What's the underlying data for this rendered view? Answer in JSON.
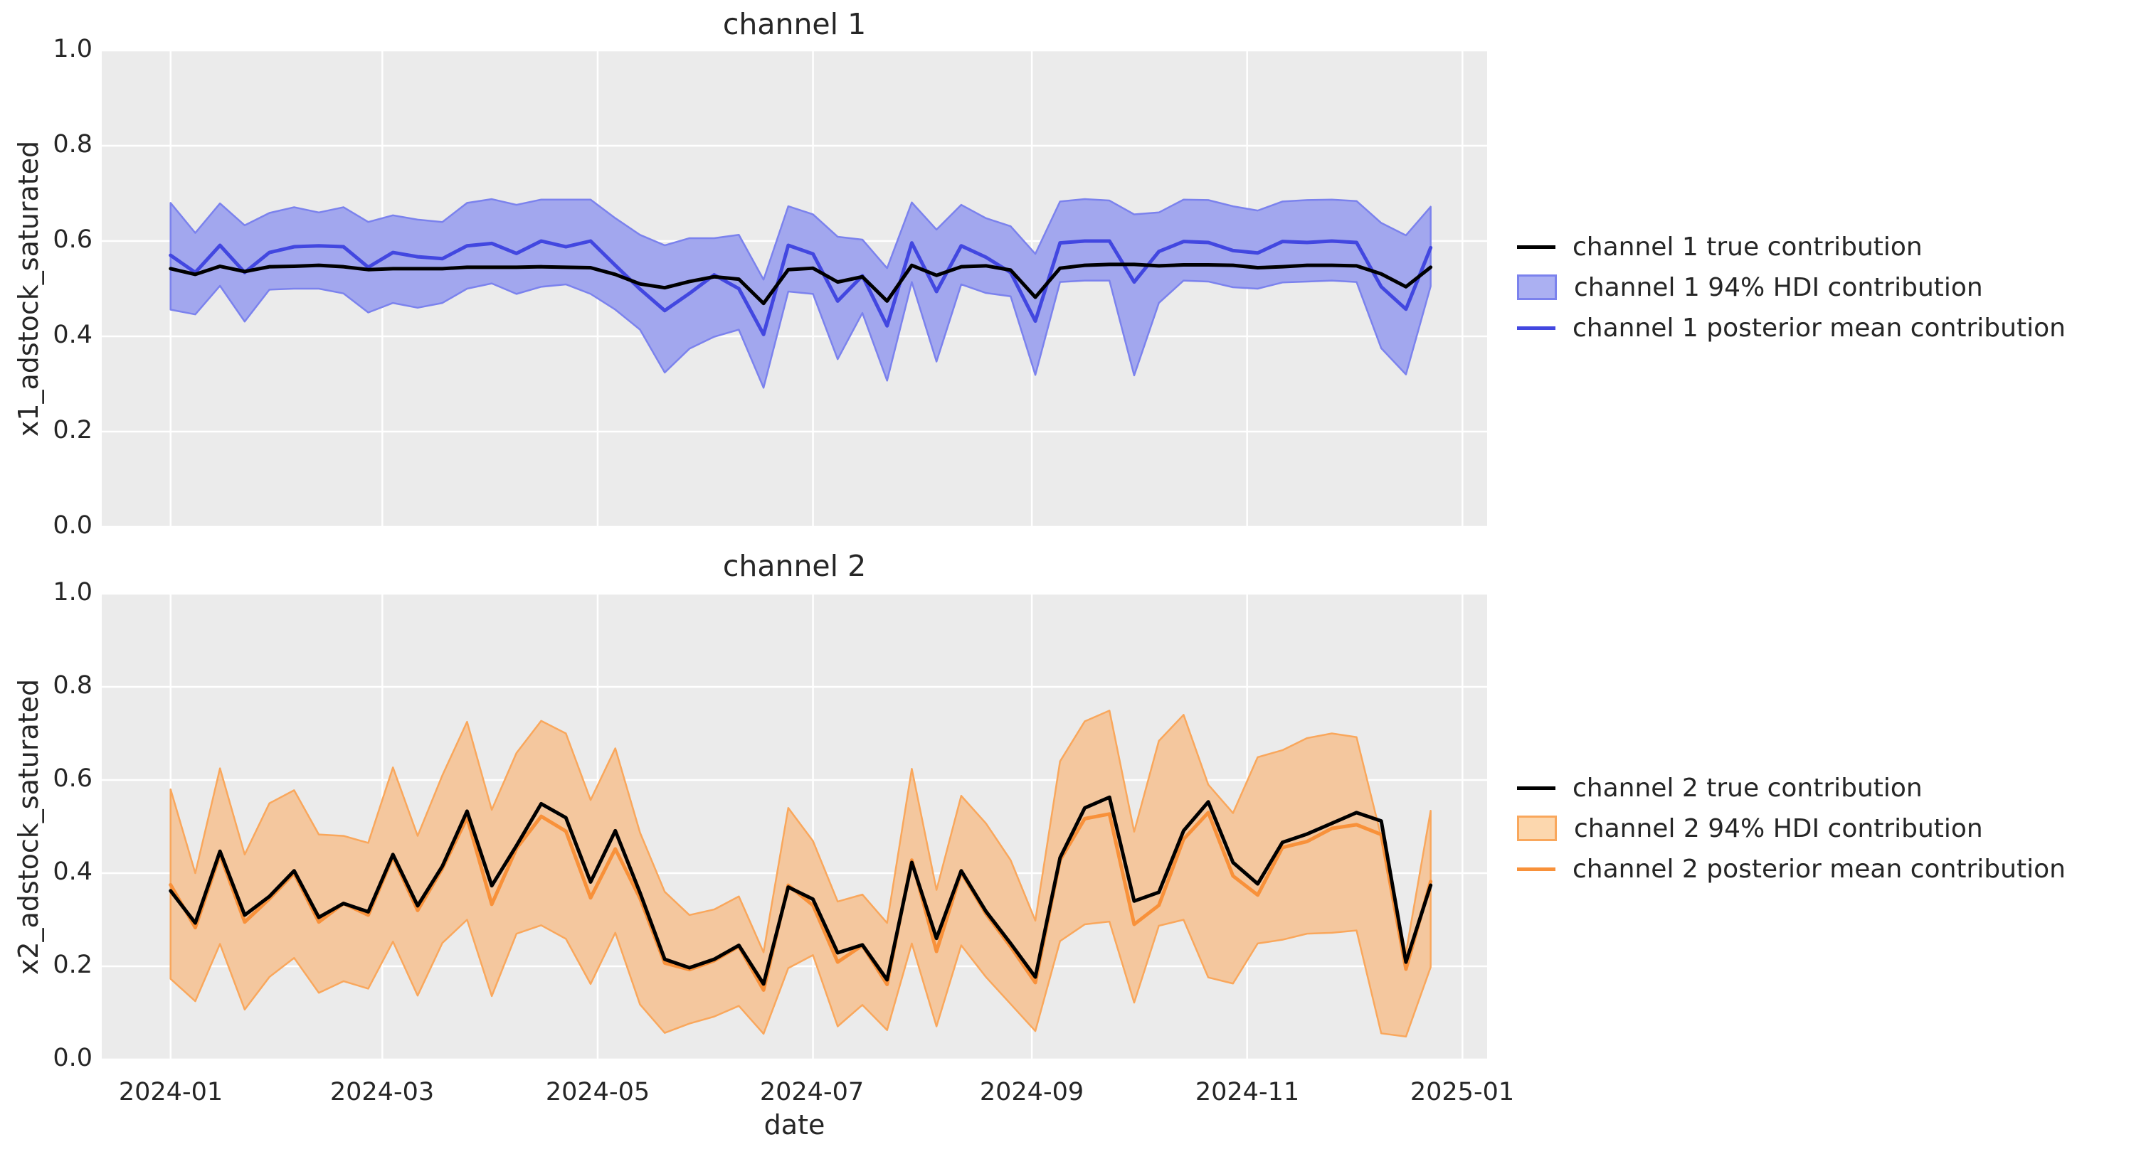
{
  "style": {
    "background": "#ffffff",
    "plot_bg": "#ebebeb",
    "grid_color": "#ffffff",
    "text_color": "#262626",
    "true_line_color": "#000000",
    "ch1_line_color": "#4247e0",
    "ch2_line_color": "#f8913a"
  },
  "chart_data": {
    "type": "line+band",
    "x": {
      "label": "date",
      "tick_labels": [
        "2024-01",
        "2024-03",
        "2024-05",
        "2024-07",
        "2024-09",
        "2024-11",
        "2025-01"
      ],
      "tick_days": [
        0,
        60,
        121,
        182,
        244,
        305,
        366
      ],
      "start_day": 0,
      "step_days": 7,
      "n_points": 52,
      "xlim_days": [
        -19.5,
        373.0
      ],
      "grid": true
    },
    "subplots": [
      {
        "title": "channel 1",
        "ylabel": "x1_adstock_saturated",
        "ylim": [
          0,
          1
        ],
        "ytick_values": [
          0,
          0.2,
          0.4,
          0.6,
          0.8,
          1.0
        ],
        "ytick_labels": [
          "0.0",
          "0.2",
          "0.4",
          "0.6",
          "0.8",
          "1.0"
        ],
        "colors": {
          "true_line": "#000000",
          "mean_line": "#4247e0",
          "band_fill": "#a2a7ee",
          "band_edge": "#7b82ed",
          "legend_patch_fill": "#abb0f2"
        },
        "legend": [
          "channel 1 true contribution",
          "channel 1 94% HDI contribution",
          "channel 1 posterior mean contribution"
        ],
        "true_values": [
          0.542,
          0.53,
          0.547,
          0.536,
          0.546,
          0.547,
          0.549,
          0.546,
          0.54,
          0.542,
          0.542,
          0.542,
          0.545,
          0.545,
          0.545,
          0.546,
          0.545,
          0.544,
          0.53,
          0.51,
          0.502,
          0.515,
          0.525,
          0.52,
          0.469,
          0.54,
          0.543,
          0.514,
          0.525,
          0.474,
          0.549,
          0.528,
          0.546,
          0.548,
          0.539,
          0.482,
          0.543,
          0.549,
          0.551,
          0.551,
          0.548,
          0.55,
          0.55,
          0.549,
          0.544,
          0.546,
          0.549,
          0.549,
          0.548,
          0.531,
          0.504,
          0.545
        ],
        "posterior_mean": [
          0.57,
          0.534,
          0.591,
          0.534,
          0.576,
          0.588,
          0.59,
          0.588,
          0.545,
          0.576,
          0.567,
          0.563,
          0.59,
          0.595,
          0.574,
          0.6,
          0.588,
          0.6,
          0.549,
          0.499,
          0.454,
          0.49,
          0.529,
          0.5,
          0.404,
          0.591,
          0.573,
          0.474,
          0.527,
          0.422,
          0.596,
          0.494,
          0.59,
          0.566,
          0.534,
          0.432,
          0.596,
          0.6,
          0.6,
          0.514,
          0.578,
          0.599,
          0.597,
          0.58,
          0.575,
          0.599,
          0.597,
          0.6,
          0.597,
          0.504,
          0.457,
          0.586
        ],
        "hdi_upper": [
          0.68,
          0.617,
          0.679,
          0.633,
          0.659,
          0.671,
          0.66,
          0.671,
          0.64,
          0.654,
          0.645,
          0.64,
          0.68,
          0.688,
          0.676,
          0.687,
          0.687,
          0.687,
          0.648,
          0.613,
          0.591,
          0.606,
          0.606,
          0.613,
          0.519,
          0.673,
          0.656,
          0.609,
          0.603,
          0.543,
          0.681,
          0.624,
          0.676,
          0.648,
          0.631,
          0.573,
          0.683,
          0.688,
          0.685,
          0.656,
          0.66,
          0.687,
          0.686,
          0.673,
          0.664,
          0.683,
          0.686,
          0.687,
          0.684,
          0.638,
          0.612,
          0.672
        ],
        "hdi_lower": [
          0.456,
          0.446,
          0.506,
          0.431,
          0.498,
          0.5,
          0.5,
          0.49,
          0.45,
          0.47,
          0.46,
          0.47,
          0.5,
          0.511,
          0.489,
          0.504,
          0.509,
          0.489,
          0.456,
          0.414,
          0.324,
          0.374,
          0.399,
          0.414,
          0.292,
          0.494,
          0.489,
          0.352,
          0.449,
          0.307,
          0.514,
          0.347,
          0.509,
          0.491,
          0.484,
          0.319,
          0.514,
          0.517,
          0.517,
          0.318,
          0.47,
          0.517,
          0.515,
          0.503,
          0.5,
          0.513,
          0.515,
          0.517,
          0.514,
          0.375,
          0.32,
          0.505
        ]
      },
      {
        "title": "channel 2",
        "ylabel": "x2_adstock_saturated",
        "ylim": [
          0,
          1
        ],
        "ytick_values": [
          0,
          0.2,
          0.4,
          0.6,
          0.8,
          1.0
        ],
        "ytick_labels": [
          "0.0",
          "0.2",
          "0.4",
          "0.6",
          "0.8",
          "1.0"
        ],
        "colors": {
          "true_line": "#000000",
          "mean_line": "#f8913a",
          "band_fill": "#f4c79e",
          "band_edge": "#f9a75c",
          "legend_patch_fill": "#fcd7ae"
        },
        "legend": [
          "channel 2 true contribution",
          "channel 2 94% HDI contribution",
          "channel 2 posterior mean contribution"
        ],
        "true_values": [
          0.362,
          0.293,
          0.447,
          0.31,
          0.35,
          0.405,
          0.305,
          0.335,
          0.317,
          0.44,
          0.33,
          0.415,
          0.533,
          0.373,
          0.459,
          0.549,
          0.519,
          0.381,
          0.491,
          0.358,
          0.215,
          0.197,
          0.215,
          0.245,
          0.162,
          0.37,
          0.344,
          0.229,
          0.246,
          0.171,
          0.423,
          0.26,
          0.405,
          0.318,
          0.249,
          0.177,
          0.433,
          0.54,
          0.563,
          0.34,
          0.359,
          0.491,
          0.553,
          0.423,
          0.377,
          0.466,
          0.484,
          0.507,
          0.53,
          0.512,
          0.209,
          0.374
        ],
        "posterior_mean": [
          0.375,
          0.283,
          0.44,
          0.295,
          0.345,
          0.4,
          0.295,
          0.335,
          0.31,
          0.435,
          0.32,
          0.41,
          0.519,
          0.333,
          0.453,
          0.522,
          0.49,
          0.347,
          0.452,
          0.346,
          0.207,
          0.193,
          0.212,
          0.243,
          0.149,
          0.374,
          0.331,
          0.209,
          0.245,
          0.161,
          0.428,
          0.232,
          0.402,
          0.313,
          0.242,
          0.165,
          0.428,
          0.517,
          0.527,
          0.29,
          0.331,
          0.473,
          0.53,
          0.394,
          0.353,
          0.455,
          0.468,
          0.496,
          0.504,
          0.483,
          0.194,
          0.382
        ],
        "hdi_upper": [
          0.58,
          0.4,
          0.625,
          0.44,
          0.55,
          0.578,
          0.483,
          0.48,
          0.465,
          0.627,
          0.48,
          0.61,
          0.725,
          0.536,
          0.658,
          0.727,
          0.7,
          0.557,
          0.668,
          0.487,
          0.36,
          0.31,
          0.322,
          0.35,
          0.23,
          0.54,
          0.469,
          0.339,
          0.354,
          0.293,
          0.624,
          0.364,
          0.566,
          0.507,
          0.428,
          0.298,
          0.64,
          0.726,
          0.749,
          0.489,
          0.684,
          0.74,
          0.59,
          0.529,
          0.649,
          0.664,
          0.69,
          0.7,
          0.692,
          0.478,
          0.229,
          0.534
        ],
        "hdi_lower": [
          0.173,
          0.125,
          0.248,
          0.107,
          0.177,
          0.218,
          0.143,
          0.168,
          0.152,
          0.253,
          0.137,
          0.25,
          0.3,
          0.136,
          0.27,
          0.288,
          0.259,
          0.162,
          0.272,
          0.118,
          0.057,
          0.077,
          0.092,
          0.115,
          0.055,
          0.196,
          0.224,
          0.071,
          0.117,
          0.063,
          0.249,
          0.071,
          0.245,
          0.177,
          0.119,
          0.061,
          0.254,
          0.29,
          0.296,
          0.122,
          0.287,
          0.3,
          0.176,
          0.163,
          0.249,
          0.257,
          0.27,
          0.272,
          0.277,
          0.056,
          0.049,
          0.198
        ]
      }
    ]
  }
}
